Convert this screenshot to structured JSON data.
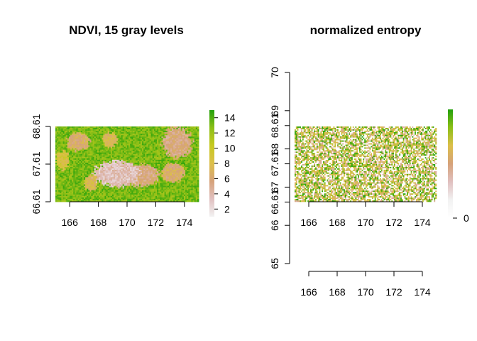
{
  "chart_data": [
    {
      "type": "heatmap",
      "title": "NDVI, 15 gray levels",
      "xlabel": "",
      "ylabel": "",
      "x_ticks": [
        "166",
        "168",
        "170",
        "172",
        "174"
      ],
      "y_ticks": [
        "66.61",
        "67.61",
        "68.61"
      ],
      "xlim": [
        165,
        175
      ],
      "ylim": [
        66.61,
        68.61
      ],
      "legend": {
        "placement": "right",
        "range": [
          1,
          15
        ],
        "ticks": [
          "2",
          "4",
          "6",
          "8",
          "10",
          "12",
          "14"
        ]
      },
      "color_ramp": [
        "#f2f2f2",
        "#e0c0c0",
        "#d6a27a",
        "#dcbf4a",
        "#c7c920",
        "#8cbf17",
        "#22a00b"
      ],
      "dominant_values": {
        "background": 13,
        "patches": 4
      }
    },
    {
      "type": "heatmap",
      "title": "normalized entropy",
      "xlabel": "",
      "ylabel": "",
      "x_ticks": [
        "166",
        "168",
        "170",
        "172",
        "174"
      ],
      "y_ticks": [
        "65",
        "66",
        "66.61",
        "67",
        "67.61",
        "68",
        "68.61",
        "69",
        "70"
      ],
      "xlim": [
        165,
        175
      ],
      "ylim": [
        65,
        70
      ],
      "data_extent": {
        "y": [
          66.61,
          68.61
        ]
      },
      "legend": {
        "placement": "right",
        "ticks": [
          "0"
        ]
      },
      "color_ramp": [
        "#ffffff",
        "#f2f2f2",
        "#e0c0c0",
        "#d6a27a",
        "#dcbf4a",
        "#8cbf17",
        "#22a00b"
      ]
    }
  ]
}
